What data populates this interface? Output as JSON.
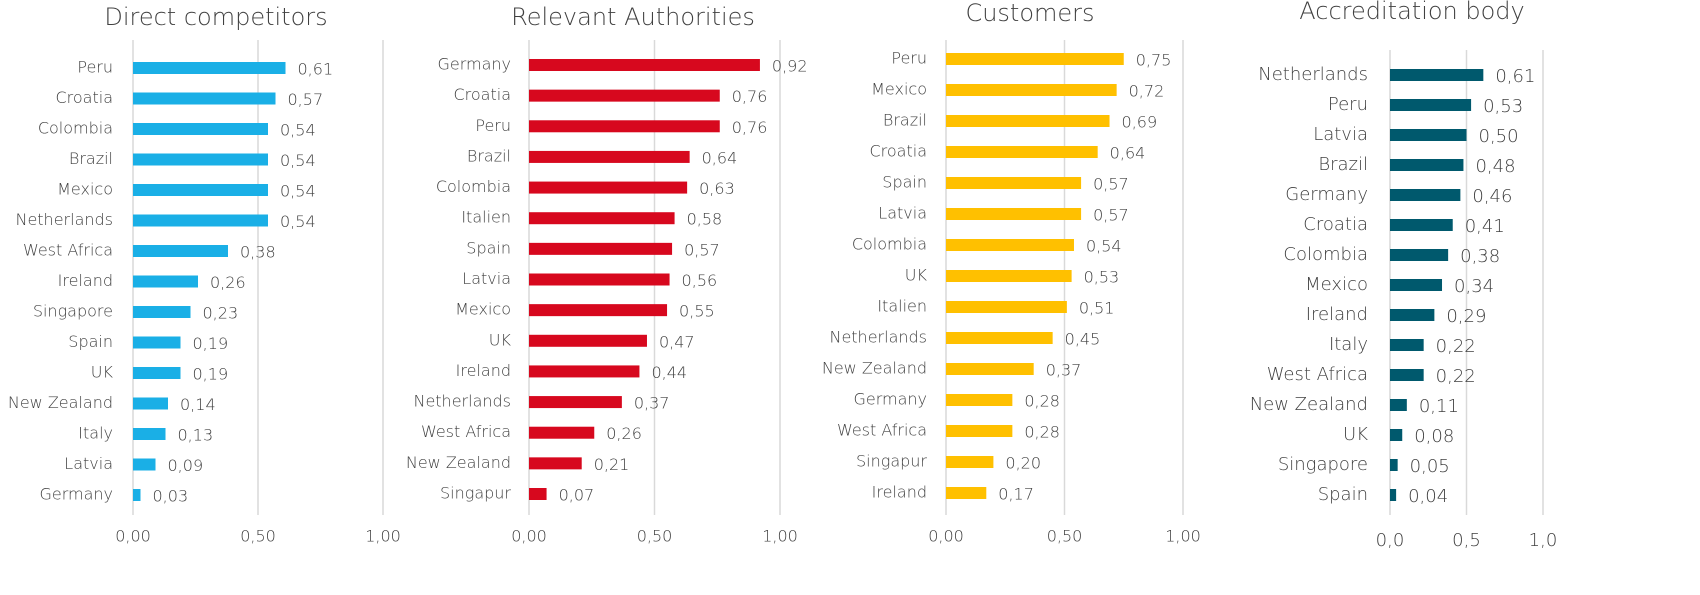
{
  "chart_data": [
    {
      "type": "bar",
      "orientation": "horizontal",
      "title": "Direct competitors",
      "color": "#1aafe6",
      "categories": [
        "Peru",
        "Croatia",
        "Colombia",
        "Brazil",
        "Mexico",
        "Netherlands",
        "West Africa",
        "Ireland",
        "Singapore",
        "Spain",
        "UK",
        "New Zealand",
        "Italy",
        "Latvia",
        "Germany"
      ],
      "values": [
        0.61,
        0.57,
        0.54,
        0.54,
        0.54,
        0.54,
        0.38,
        0.26,
        0.23,
        0.19,
        0.19,
        0.14,
        0.13,
        0.09,
        0.03
      ],
      "value_labels": [
        "0,61",
        "0,57",
        "0,54",
        "0,54",
        "0,54",
        "0,54",
        "0,38",
        "0,26",
        "0,23",
        "0,19",
        "0,19",
        "0,14",
        "0,13",
        "0,09",
        "0,03"
      ],
      "xlim": [
        0,
        1
      ],
      "xticks": [
        {
          "value": 0,
          "label": "0,00"
        },
        {
          "value": 0.5,
          "label": "0,50"
        },
        {
          "value": 1,
          "label": "1,00"
        }
      ],
      "grid": true
    },
    {
      "type": "bar",
      "orientation": "horizontal",
      "title": "Relevant Authorities",
      "color": "#d7081e",
      "categories": [
        "Germany",
        "Croatia",
        "Peru",
        "Brazil",
        "Colombia",
        "Italien",
        "Spain",
        "Latvia",
        "Mexico",
        "UK",
        "Ireland",
        "Netherlands",
        "West Africa",
        "New Zealand",
        "Singapur"
      ],
      "values": [
        0.92,
        0.76,
        0.76,
        0.64,
        0.63,
        0.58,
        0.57,
        0.56,
        0.55,
        0.47,
        0.44,
        0.37,
        0.26,
        0.21,
        0.07
      ],
      "value_labels": [
        "0,92",
        "0,76",
        "0,76",
        "0,64",
        "0,63",
        "0,58",
        "0,57",
        "0,56",
        "0,55",
        "0,47",
        "0,44",
        "0,37",
        "0,26",
        "0,21",
        "0,07"
      ],
      "xlim": [
        0,
        1
      ],
      "xticks": [
        {
          "value": 0,
          "label": "0,00"
        },
        {
          "value": 0.5,
          "label": "0,50"
        },
        {
          "value": 1,
          "label": "1,00"
        }
      ],
      "grid": true
    },
    {
      "type": "bar",
      "orientation": "horizontal",
      "title": "Customers",
      "color": "#ffc000",
      "categories": [
        "Peru",
        "Mexico",
        "Brazil",
        "Croatia",
        "Spain",
        "Latvia",
        "Colombia",
        "UK",
        "Italien",
        "Netherlands",
        "New Zealand",
        "Germany",
        "West Africa",
        "Singapur",
        "Ireland"
      ],
      "values": [
        0.75,
        0.72,
        0.69,
        0.64,
        0.57,
        0.57,
        0.54,
        0.53,
        0.51,
        0.45,
        0.37,
        0.28,
        0.28,
        0.2,
        0.17
      ],
      "value_labels": [
        "0,75",
        "0,72",
        "0,69",
        "0,64",
        "0,57",
        "0,57",
        "0,54",
        "0,53",
        "0,51",
        "0,45",
        "0,37",
        "0,28",
        "0,28",
        "0,20",
        "0,17"
      ],
      "xlim": [
        0,
        1
      ],
      "xticks": [
        {
          "value": 0,
          "label": "0,00"
        },
        {
          "value": 0.5,
          "label": "0,50"
        },
        {
          "value": 1,
          "label": "1,00"
        }
      ],
      "grid": true
    },
    {
      "type": "bar",
      "orientation": "horizontal",
      "title": "Accreditation body",
      "color": "#00596d",
      "categories": [
        "Netherlands",
        "Peru",
        "Latvia",
        "Brazil",
        "Germany",
        "Croatia",
        "Colombia",
        "Mexico",
        "Ireland",
        "Italy",
        "West Africa",
        "New Zealand",
        "UK",
        "Singapore",
        "Spain"
      ],
      "values": [
        0.61,
        0.53,
        0.5,
        0.48,
        0.46,
        0.41,
        0.38,
        0.34,
        0.29,
        0.22,
        0.22,
        0.11,
        0.08,
        0.05,
        0.04
      ],
      "value_labels": [
        "0,61",
        "0,53",
        "0,50",
        "0,48",
        "0,46",
        "0,41",
        "0,38",
        "0,34",
        "0,29",
        "0,22",
        "0,22",
        "0,11",
        "0,08",
        "0,05",
        "0,04"
      ],
      "xlim": [
        0,
        1
      ],
      "xticks": [
        {
          "value": 0,
          "label": "0,0"
        },
        {
          "value": 0.5,
          "label": "0,5"
        },
        {
          "value": 1,
          "label": "1,0"
        }
      ],
      "grid": true
    }
  ]
}
